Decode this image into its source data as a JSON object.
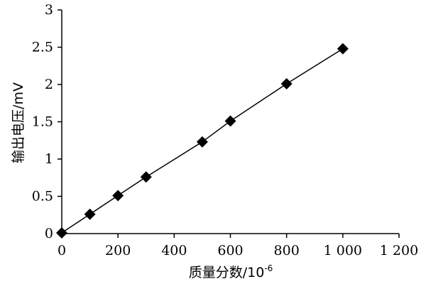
{
  "chart_data": {
    "type": "scatter",
    "xlabel": "质量分数/10",
    "xlabel_exponent": "-6",
    "ylabel": "输出电压/mV",
    "xlim": [
      0,
      1200
    ],
    "ylim": [
      0,
      3
    ],
    "x_ticks": [
      {
        "value": 0,
        "label": "0"
      },
      {
        "value": 200,
        "label": "200"
      },
      {
        "value": 400,
        "label": "400"
      },
      {
        "value": 600,
        "label": "600"
      },
      {
        "value": 800,
        "label": "800"
      },
      {
        "value": 1000,
        "label": "1 000"
      },
      {
        "value": 1200,
        "label": "1 200"
      }
    ],
    "y_ticks": [
      {
        "value": 0,
        "label": "0"
      },
      {
        "value": 0.5,
        "label": "0.5"
      },
      {
        "value": 1,
        "label": "1"
      },
      {
        "value": 1.5,
        "label": "1.5"
      },
      {
        "value": 2,
        "label": "2"
      },
      {
        "value": 2.5,
        "label": "2.5"
      },
      {
        "value": 3,
        "label": "3"
      }
    ],
    "grid": false,
    "legend": "none",
    "marker": "diamond",
    "line_connects_points": true,
    "series": [
      {
        "x": [
          0,
          100,
          200,
          300,
          500,
          600,
          800,
          1000
        ],
        "y": [
          0.01,
          0.26,
          0.51,
          0.76,
          1.23,
          1.51,
          2.01,
          2.48
        ]
      }
    ]
  }
}
